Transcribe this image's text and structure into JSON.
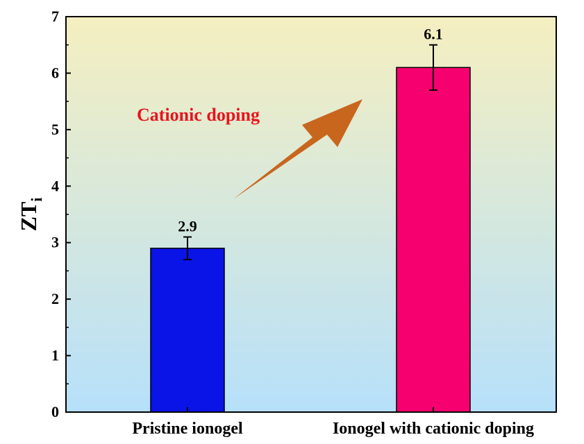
{
  "chart_data": {
    "type": "bar",
    "categories": [
      "Pristine ionogel",
      "Ionogel with cationic doping"
    ],
    "values": [
      2.9,
      6.1
    ],
    "errors": [
      0.2,
      0.4
    ],
    "data_labels": [
      "2.9",
      "6.1"
    ],
    "bar_colors": [
      "#0a14e6",
      "#f5006e"
    ],
    "ylabel": {
      "main": "ZT",
      "sub": "i"
    },
    "ylim": [
      0,
      7
    ],
    "yticks": [
      "0",
      "1",
      "2",
      "3",
      "4",
      "5",
      "6",
      "7"
    ],
    "grid": false,
    "background_gradient": {
      "top": "#f5efc0",
      "bottom": "#b6e0fa"
    },
    "annotation": {
      "text": "Cationic doping",
      "color": "#e8141e",
      "arrow_color": "#c8661e"
    }
  }
}
